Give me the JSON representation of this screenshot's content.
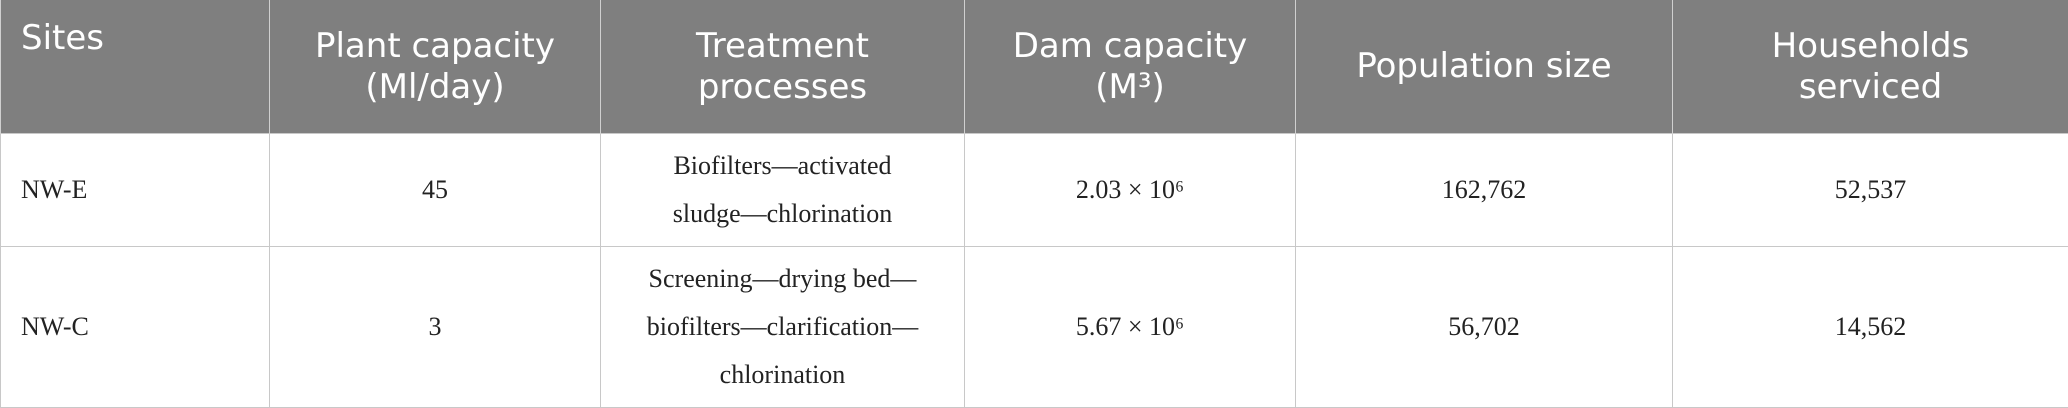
{
  "table": {
    "header": [
      [
        "Sites"
      ],
      [
        "Plant capacity",
        "(Ml/day)"
      ],
      [
        "Treatment",
        "processes"
      ],
      [
        "Dam capacity",
        "(M³)"
      ],
      [
        "Population size"
      ],
      [
        "Households",
        "serviced"
      ]
    ],
    "rows": [
      [
        [
          "NW-E"
        ],
        [
          "45"
        ],
        [
          "Biofilters—activated",
          "sludge—chlorination"
        ],
        [
          "2.03 × 10⁶"
        ],
        [
          "162,762"
        ],
        [
          "52,537"
        ]
      ],
      [
        [
          "NW-C"
        ],
        [
          "3"
        ],
        [
          "Screening—drying bed—",
          "biofilters—clarification—",
          "chlorination"
        ],
        [
          "5.67 × 10⁶"
        ],
        [
          "56,702"
        ],
        [
          "14,562"
        ]
      ]
    ]
  }
}
